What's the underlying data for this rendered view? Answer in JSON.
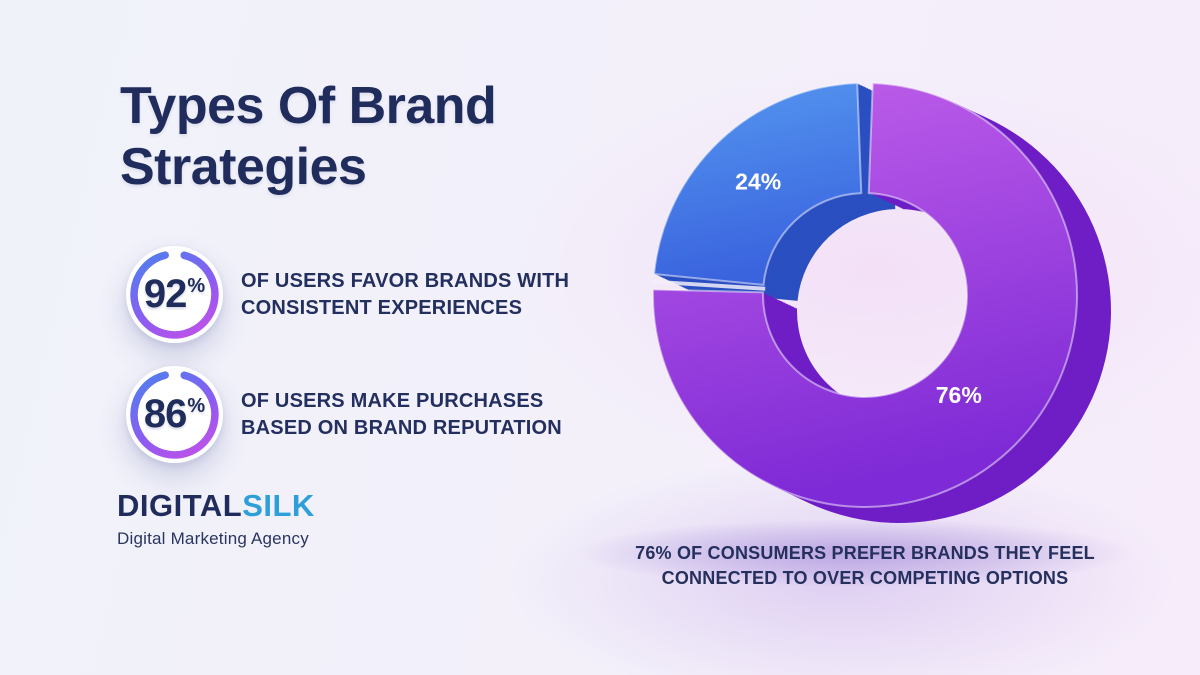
{
  "header": {
    "title": "Types Of Brand Strategies"
  },
  "stats": [
    {
      "value": "92",
      "unit": "%",
      "label": "OF USERS FAVOR BRANDS WITH CONSISTENT EXPERIENCES"
    },
    {
      "value": "86",
      "unit": "%",
      "label": "OF USERS MAKE PURCHASES BASED ON BRAND REPUTATION"
    }
  ],
  "logo": {
    "name_primary": "DIGITAL",
    "name_secondary": "SILK",
    "tagline": "Digital Marketing Agency"
  },
  "colors": {
    "navy": "#1f2c5c",
    "logo_blue": "#2e9fd8",
    "stat_ring_gradient": [
      "#4a82ee",
      "#8b5cf2",
      "#c94fe6"
    ],
    "background_left": "#f0f2fa",
    "background_right": "#f6ecfa",
    "chart_label": "#ffffff"
  },
  "chart_data": {
    "type": "pie",
    "variant": "3d-donut",
    "start_angle_deg": 0,
    "direction": "clockwise",
    "label_color": "#ffffff",
    "segments": [
      {
        "label": "76%",
        "value": 76,
        "color_top": "#c160ea",
        "color_bottom": "#7e2ad6",
        "depth_color": "#6f1ec6"
      },
      {
        "label": "24%",
        "value": 24,
        "color_top": "#5598f0",
        "color_bottom": "#3a63de",
        "depth_color": "#2a4fc0"
      }
    ],
    "caption": "76% OF CONSUMERS PREFER BRANDS THEY FEEL CONNECTED TO OVER COMPETING OPTIONS"
  }
}
